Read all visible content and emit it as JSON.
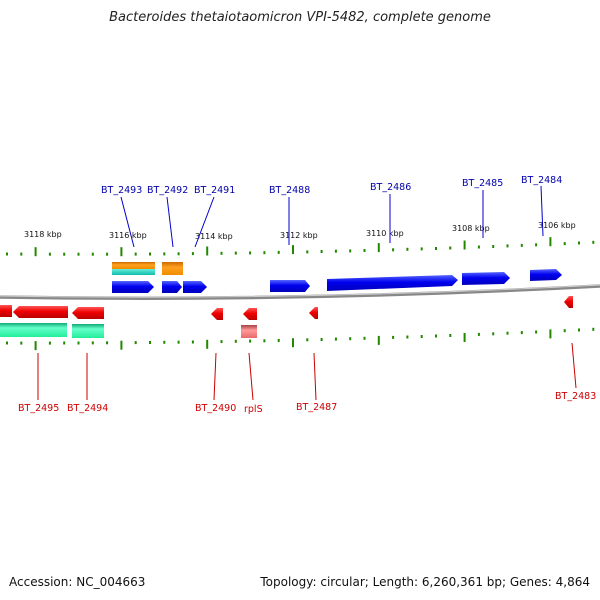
{
  "title": "Bacteroides thetaiotaomicron VPI-5482, complete genome",
  "footer": {
    "accession": "Accession: NC_004663",
    "summary": "Topology: circular; Length: 6,260,361 bp; Genes: 4,864"
  },
  "colors": {
    "forward_gene": "#0000ee",
    "reverse_gene": "#ee0000",
    "orange_feature": "#f08c00",
    "teal_feature": "#22ddbb",
    "green_feature": "#22ee99",
    "rna_feature": "#e86a6a",
    "backbone": "#888888",
    "tick": "#228800",
    "forward_label": "#0000aa",
    "reverse_label": "#cc0000"
  },
  "scale_labels": [
    "3118 kbp",
    "3116 kbp",
    "3114 kbp",
    "3112 kbp",
    "3110 kbp",
    "3108 kbp",
    "3106 kbp"
  ],
  "forward_genes": [
    "BT_2493",
    "BT_2492",
    "BT_2491",
    "BT_2488",
    "BT_2486",
    "BT_2485",
    "BT_2484"
  ],
  "reverse_genes": [
    "BT_2495",
    "BT_2494",
    "BT_2490",
    "rplS",
    "BT_2487",
    "BT_2483"
  ]
}
